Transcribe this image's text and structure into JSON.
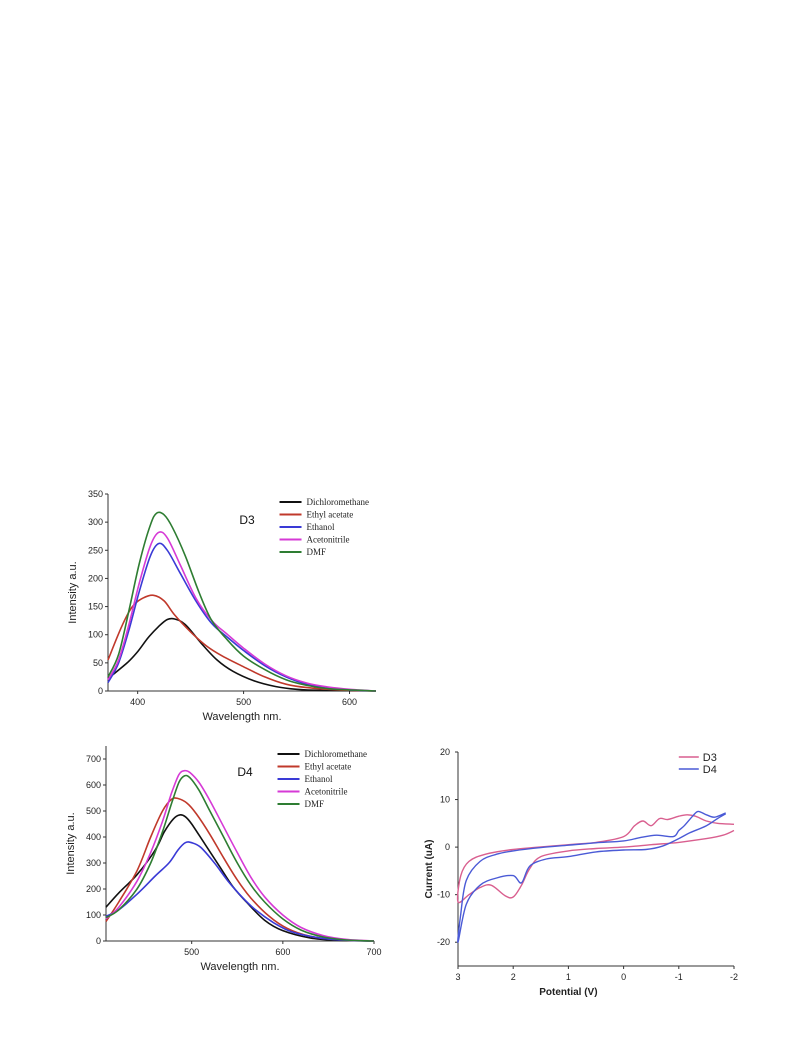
{
  "chart_data": [
    {
      "id": "d3",
      "type": "line",
      "annotation": "D3",
      "xlabel": "Wavelength nm.",
      "ylabel": "Intensity a.u.",
      "xlim": [
        372,
        625
      ],
      "ylim": [
        0,
        350
      ],
      "xticks": [
        400,
        500,
        600
      ],
      "yticks": [
        0,
        50,
        100,
        150,
        200,
        250,
        300,
        350
      ],
      "series": [
        {
          "name": "Dichloromethane",
          "color": "#111111",
          "points": [
            [
              372,
              22
            ],
            [
              390,
              50
            ],
            [
              400,
              70
            ],
            [
              410,
              95
            ],
            [
              420,
              115
            ],
            [
              428,
              127
            ],
            [
              435,
              128
            ],
            [
              445,
              118
            ],
            [
              460,
              85
            ],
            [
              475,
              55
            ],
            [
              490,
              35
            ],
            [
              510,
              18
            ],
            [
              530,
              8
            ],
            [
              550,
              3
            ],
            [
              575,
              1
            ],
            [
              625,
              0
            ]
          ]
        },
        {
          "name": "Ethyl acetate",
          "color": "#c0392b",
          "points": [
            [
              372,
              55
            ],
            [
              385,
              115
            ],
            [
              395,
              150
            ],
            [
              405,
              165
            ],
            [
              415,
              170
            ],
            [
              425,
              160
            ],
            [
              435,
              135
            ],
            [
              450,
              105
            ],
            [
              465,
              80
            ],
            [
              480,
              62
            ],
            [
              500,
              43
            ],
            [
              520,
              25
            ],
            [
              540,
              12
            ],
            [
              560,
              6
            ],
            [
              590,
              2
            ],
            [
              625,
              0
            ]
          ]
        },
        {
          "name": "Ethanol",
          "color": "#3a3ad6",
          "points": [
            [
              372,
              15
            ],
            [
              382,
              50
            ],
            [
              392,
              110
            ],
            [
              402,
              180
            ],
            [
              412,
              240
            ],
            [
              420,
              262
            ],
            [
              428,
              250
            ],
            [
              440,
              210
            ],
            [
              455,
              160
            ],
            [
              470,
              120
            ],
            [
              485,
              95
            ],
            [
              500,
              72
            ],
            [
              520,
              45
            ],
            [
              540,
              25
            ],
            [
              560,
              12
            ],
            [
              580,
              6
            ],
            [
              600,
              2
            ],
            [
              625,
              0
            ]
          ]
        },
        {
          "name": "Acetonitrile",
          "color": "#d63ad6",
          "points": [
            [
              372,
              20
            ],
            [
              382,
              55
            ],
            [
              392,
              120
            ],
            [
              402,
              195
            ],
            [
              412,
              258
            ],
            [
              420,
              282
            ],
            [
              428,
              272
            ],
            [
              440,
              225
            ],
            [
              455,
              165
            ],
            [
              470,
              125
            ],
            [
              485,
              100
            ],
            [
              500,
              76
            ],
            [
              520,
              48
            ],
            [
              540,
              27
            ],
            [
              560,
              14
            ],
            [
              580,
              7
            ],
            [
              600,
              3
            ],
            [
              625,
              0
            ]
          ]
        },
        {
          "name": "DMF",
          "color": "#2e7d32",
          "points": [
            [
              372,
              25
            ],
            [
              382,
              65
            ],
            [
              392,
              145
            ],
            [
              402,
              230
            ],
            [
              412,
              295
            ],
            [
              418,
              316
            ],
            [
              425,
              313
            ],
            [
              433,
              290
            ],
            [
              445,
              240
            ],
            [
              458,
              175
            ],
            [
              470,
              125
            ],
            [
              485,
              90
            ],
            [
              500,
              62
            ],
            [
              520,
              38
            ],
            [
              540,
              20
            ],
            [
              560,
              10
            ],
            [
              580,
              4
            ],
            [
              600,
              2
            ],
            [
              625,
              0
            ]
          ]
        }
      ]
    },
    {
      "id": "d4",
      "type": "line",
      "annotation": "D4",
      "xlabel": "Wavelength nm.",
      "ylabel": "Intensity a.u.",
      "xlim": [
        406,
        700
      ],
      "ylim": [
        0,
        750
      ],
      "xticks": [
        500,
        600,
        700
      ],
      "yticks": [
        0,
        100,
        200,
        300,
        400,
        500,
        600,
        700
      ],
      "series": [
        {
          "name": "Dichloromethane",
          "color": "#111111",
          "points": [
            [
              406,
              130
            ],
            [
              420,
              185
            ],
            [
              440,
              255
            ],
            [
              460,
              350
            ],
            [
              470,
              420
            ],
            [
              480,
              470
            ],
            [
              487,
              485
            ],
            [
              493,
              478
            ],
            [
              500,
              450
            ],
            [
              515,
              370
            ],
            [
              530,
              290
            ],
            [
              545,
              210
            ],
            [
              560,
              150
            ],
            [
              580,
              80
            ],
            [
              600,
              40
            ],
            [
              630,
              12
            ],
            [
              660,
              3
            ],
            [
              700,
              0
            ]
          ]
        },
        {
          "name": "Ethyl acetate",
          "color": "#c0392b",
          "points": [
            [
              406,
              75
            ],
            [
              420,
              150
            ],
            [
              440,
              270
            ],
            [
              455,
              400
            ],
            [
              468,
              500
            ],
            [
              478,
              545
            ],
            [
              485,
              548
            ],
            [
              495,
              530
            ],
            [
              505,
              490
            ],
            [
              520,
              410
            ],
            [
              535,
              320
            ],
            [
              550,
              235
            ],
            [
              565,
              165
            ],
            [
              585,
              95
            ],
            [
              605,
              48
            ],
            [
              630,
              18
            ],
            [
              660,
              5
            ],
            [
              700,
              0
            ]
          ]
        },
        {
          "name": "Ethanol",
          "color": "#3a3ad6",
          "points": [
            [
              406,
              95
            ],
            [
              420,
              120
            ],
            [
              440,
              180
            ],
            [
              460,
              250
            ],
            [
              475,
              300
            ],
            [
              485,
              350
            ],
            [
              493,
              378
            ],
            [
              500,
              378
            ],
            [
              510,
              360
            ],
            [
              525,
              300
            ],
            [
              540,
              230
            ],
            [
              555,
              170
            ],
            [
              570,
              120
            ],
            [
              590,
              70
            ],
            [
              610,
              35
            ],
            [
              640,
              12
            ],
            [
              670,
              3
            ],
            [
              700,
              0
            ]
          ]
        },
        {
          "name": "Acetonitrile",
          "color": "#d63ad6",
          "points": [
            [
              406,
              85
            ],
            [
              420,
              130
            ],
            [
              440,
              230
            ],
            [
              455,
              340
            ],
            [
              468,
              460
            ],
            [
              478,
              570
            ],
            [
              486,
              640
            ],
            [
              492,
              655
            ],
            [
              498,
              648
            ],
            [
              508,
              610
            ],
            [
              520,
              540
            ],
            [
              535,
              440
            ],
            [
              550,
              340
            ],
            [
              565,
              245
            ],
            [
              580,
              170
            ],
            [
              600,
              100
            ],
            [
              620,
              52
            ],
            [
              645,
              20
            ],
            [
              670,
              6
            ],
            [
              700,
              0
            ]
          ]
        },
        {
          "name": "DMF",
          "color": "#2e7d32",
          "points": [
            [
              406,
              90
            ],
            [
              420,
              120
            ],
            [
              440,
              200
            ],
            [
              455,
              300
            ],
            [
              468,
              420
            ],
            [
              478,
              530
            ],
            [
              486,
              610
            ],
            [
              492,
              635
            ],
            [
              498,
              628
            ],
            [
              508,
              580
            ],
            [
              520,
              500
            ],
            [
              535,
              400
            ],
            [
              550,
              300
            ],
            [
              565,
              215
            ],
            [
              580,
              150
            ],
            [
              600,
              85
            ],
            [
              620,
              42
            ],
            [
              645,
              15
            ],
            [
              670,
              4
            ],
            [
              700,
              0
            ]
          ]
        }
      ]
    },
    {
      "id": "cv",
      "type": "line",
      "xlabel": "Potential (V)",
      "ylabel": "Current (uA)",
      "xlim": [
        3,
        -2
      ],
      "ylim": [
        -25,
        20
      ],
      "xticks": [
        3,
        2,
        1,
        0,
        -1,
        -2
      ],
      "xtick_labels": [
        "3",
        "2",
        "1",
        "0",
        "-1",
        "-2"
      ],
      "yticks": [
        -20,
        -10,
        0,
        10,
        20
      ],
      "series": [
        {
          "name": "D3",
          "color": "#d95f8f",
          "points": [
            [
              -2,
              3.5
            ],
            [
              -1.8,
              2.5
            ],
            [
              -1.5,
              1.8
            ],
            [
              -1,
              1
            ],
            [
              -0.5,
              0.5
            ],
            [
              0,
              0
            ],
            [
              0.5,
              -0.3
            ],
            [
              1,
              -0.8
            ],
            [
              1.5,
              -2
            ],
            [
              1.7,
              -4.5
            ],
            [
              1.85,
              -8
            ],
            [
              2,
              -10.5
            ],
            [
              2.15,
              -10.2
            ],
            [
              2.4,
              -8
            ],
            [
              2.6,
              -8.5
            ],
            [
              2.8,
              -10
            ],
            [
              3,
              -11.5
            ],
            [
              2.95,
              -6
            ],
            [
              2.8,
              -3
            ],
            [
              2.5,
              -1.5
            ],
            [
              2,
              -0.5
            ],
            [
              1,
              0.5
            ],
            [
              0.5,
              1
            ],
            [
              0,
              2.2
            ],
            [
              -0.2,
              4.5
            ],
            [
              -0.35,
              5.5
            ],
            [
              -0.5,
              4.5
            ],
            [
              -0.65,
              6
            ],
            [
              -0.8,
              5.8
            ],
            [
              -1,
              6.5
            ],
            [
              -1.15,
              6.8
            ],
            [
              -1.3,
              6.5
            ],
            [
              -1.5,
              5.5
            ],
            [
              -1.7,
              5
            ],
            [
              -2,
              4.8
            ]
          ]
        },
        {
          "name": "D4",
          "color": "#4a5ad6",
          "points": [
            [
              -1.85,
              7
            ],
            [
              -1.7,
              6
            ],
            [
              -1.5,
              4.5
            ],
            [
              -1.2,
              3
            ],
            [
              -1,
              1.8
            ],
            [
              -0.7,
              0.2
            ],
            [
              -0.4,
              -0.5
            ],
            [
              0,
              -0.6
            ],
            [
              0.5,
              -1
            ],
            [
              1,
              -2
            ],
            [
              1.4,
              -2.5
            ],
            [
              1.7,
              -4
            ],
            [
              1.85,
              -7.5
            ],
            [
              2,
              -6
            ],
            [
              2.3,
              -6.5
            ],
            [
              2.6,
              -8
            ],
            [
              2.85,
              -12
            ],
            [
              3,
              -20
            ],
            [
              2.95,
              -14
            ],
            [
              2.85,
              -7
            ],
            [
              2.6,
              -3
            ],
            [
              2.3,
              -1.5
            ],
            [
              2,
              -0.8
            ],
            [
              1.5,
              -0.1
            ],
            [
              1,
              0.4
            ],
            [
              0.5,
              0.9
            ],
            [
              0,
              1.3
            ],
            [
              -0.3,
              2
            ],
            [
              -0.6,
              2.5
            ],
            [
              -0.9,
              2.2
            ],
            [
              -1,
              3.5
            ],
            [
              -1.1,
              4.5
            ],
            [
              -1.25,
              6.5
            ],
            [
              -1.35,
              7.5
            ],
            [
              -1.5,
              6.8
            ],
            [
              -1.65,
              6.3
            ],
            [
              -1.85,
              7.2
            ]
          ]
        }
      ]
    }
  ]
}
